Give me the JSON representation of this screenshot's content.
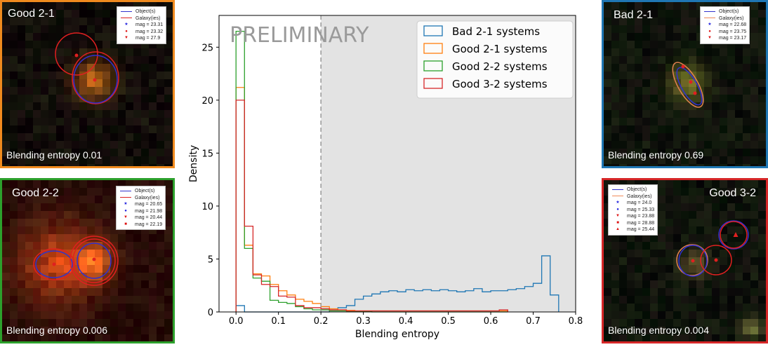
{
  "panels": [
    {
      "title": "Good 2-1",
      "footer": "Blending entropy 0.01",
      "border_color": "#f08a1e",
      "legend": [
        {
          "icon": "line",
          "color": "#3333cc",
          "label": "Object(s)"
        },
        {
          "icon": "line",
          "color": "#dd2222",
          "label": "Galaxy(ies)"
        },
        {
          "icon": "star",
          "color": "#2222dd",
          "label": "mag = 23.31"
        },
        {
          "icon": "circle",
          "color": "#dd1111",
          "label": "mag = 23.32"
        },
        {
          "icon": "triangle-down",
          "color": "#dd1111",
          "label": "mag = 27.9"
        }
      ]
    },
    {
      "title": "Good 2-2",
      "footer": "Blending entropy 0.006",
      "border_color": "#2ca02c",
      "legend": [
        {
          "icon": "line",
          "color": "#3333cc",
          "label": "Object(s)"
        },
        {
          "icon": "line",
          "color": "#dd2222",
          "label": "Galaxy(ies)"
        },
        {
          "icon": "star",
          "color": "#2222dd",
          "label": "mag = 20.65"
        },
        {
          "icon": "circle",
          "color": "#2222dd",
          "label": "mag = 21.98"
        },
        {
          "icon": "triangle-down",
          "color": "#dd1111",
          "label": "mag = 20.44"
        },
        {
          "icon": "square",
          "color": "#dd1111",
          "label": "mag = 22.19"
        }
      ]
    },
    {
      "title": "Bad 2-1",
      "footer": "Blending entropy 0.69",
      "border_color": "#1f77b4",
      "legend": [
        {
          "icon": "line",
          "color": "#3333cc",
          "label": "Object(s)"
        },
        {
          "icon": "line",
          "color": "#f08a5a",
          "label": "Galaxy(ies)"
        },
        {
          "icon": "star",
          "color": "#2222dd",
          "label": "mag = 22.68"
        },
        {
          "icon": "circle",
          "color": "#dd1111",
          "label": "mag = 23.75"
        },
        {
          "icon": "triangle-down",
          "color": "#dd1111",
          "label": "mag = 23.17"
        }
      ]
    },
    {
      "title": "Good 3-2",
      "footer": "Blending entropy 0.004",
      "border_color": "#d62728",
      "legend": [
        {
          "icon": "line",
          "color": "#3333cc",
          "label": "Object(s)"
        },
        {
          "icon": "line",
          "color": "#f08a5a",
          "label": "Galaxy(ies)"
        },
        {
          "icon": "star",
          "color": "#2222dd",
          "label": "mag = 24.0"
        },
        {
          "icon": "circle",
          "color": "#2222dd",
          "label": "mag = 25.33"
        },
        {
          "icon": "triangle-down",
          "color": "#dd1111",
          "label": "mag = 23.88"
        },
        {
          "icon": "square",
          "color": "#dd1111",
          "label": "mag = 28.88"
        },
        {
          "icon": "triangle-up",
          "color": "#dd1111",
          "label": "mag = 25.44"
        }
      ]
    }
  ],
  "chart_data": {
    "type": "bar",
    "watermark": "PRELIMINARY",
    "xlabel": "Blending entropy",
    "ylabel": "Density",
    "xlim": [
      -0.04,
      0.8
    ],
    "ylim": [
      0,
      28
    ],
    "xticks": [
      0.0,
      0.1,
      0.2,
      0.3,
      0.4,
      0.5,
      0.6,
      0.7,
      0.8
    ],
    "xtick_labels": [
      "0.0",
      "0.1",
      "0.2",
      "0.3",
      "0.4",
      "0.5",
      "0.6",
      "0.7",
      "0.8"
    ],
    "yticks": [
      0,
      5,
      10,
      15,
      20,
      25
    ],
    "ytick_labels": [
      "0",
      "5",
      "10",
      "15",
      "20",
      "25"
    ],
    "threshold": 0.2,
    "shaded_region": [
      0.2,
      0.8
    ],
    "grid": false,
    "legend_position": "top-right",
    "bin_width": 0.02,
    "series": [
      {
        "name": "Bad 2-1 systems",
        "color": "#1f77b4",
        "bins_start": 0.0,
        "values": [
          0.6,
          0,
          0,
          0,
          0,
          0,
          0,
          0,
          0,
          0,
          0,
          0.2,
          0.4,
          0.6,
          1.2,
          1.5,
          1.7,
          1.9,
          2.0,
          1.9,
          2.1,
          2.0,
          2.1,
          2.0,
          2.1,
          2.0,
          1.9,
          2.0,
          2.2,
          1.9,
          2.0,
          2.0,
          2.1,
          2.2,
          2.4,
          2.7,
          5.3,
          1.6
        ]
      },
      {
        "name": "Good 2-1 systems",
        "color": "#ff7f0e",
        "bins_start": 0.0,
        "values": [
          21.2,
          6.3,
          3.6,
          3.4,
          2.6,
          2.0,
          1.6,
          1.2,
          1.0,
          0.8,
          0.5,
          0.3,
          0.2,
          0.15,
          0.1,
          0.1,
          0.1,
          0.1,
          0.1,
          0.1,
          0.1,
          0.1,
          0.1,
          0.1,
          0.1,
          0.1,
          0.1,
          0.1,
          0.1,
          0.1,
          0.1,
          0.1
        ]
      },
      {
        "name": "Good 2-2 systems",
        "color": "#2ca02c",
        "bins_start": 0.0,
        "values": [
          26.5,
          6.0,
          3.2,
          2.9,
          1.1,
          0.9,
          0.8,
          0.5,
          0.3,
          0.2,
          0.2,
          0.1,
          0.1,
          0.05,
          0.05,
          0.05,
          0,
          0,
          0,
          0,
          0,
          0,
          0,
          0,
          0,
          0,
          0,
          0,
          0,
          0,
          0,
          0
        ]
      },
      {
        "name": "Good 3-2 systems",
        "color": "#d62728",
        "bins_start": 0.0,
        "values": [
          20.0,
          8.1,
          3.5,
          2.6,
          2.4,
          1.5,
          1.4,
          0.6,
          0.4,
          0.4,
          0.3,
          0.2,
          0.2,
          0.1,
          0.1,
          0.1,
          0.1,
          0.1,
          0.1,
          0.1,
          0.1,
          0.1,
          0.1,
          0.1,
          0.1,
          0.1,
          0.1,
          0.1,
          0.1,
          0.1,
          0.1,
          0.2
        ]
      }
    ]
  }
}
